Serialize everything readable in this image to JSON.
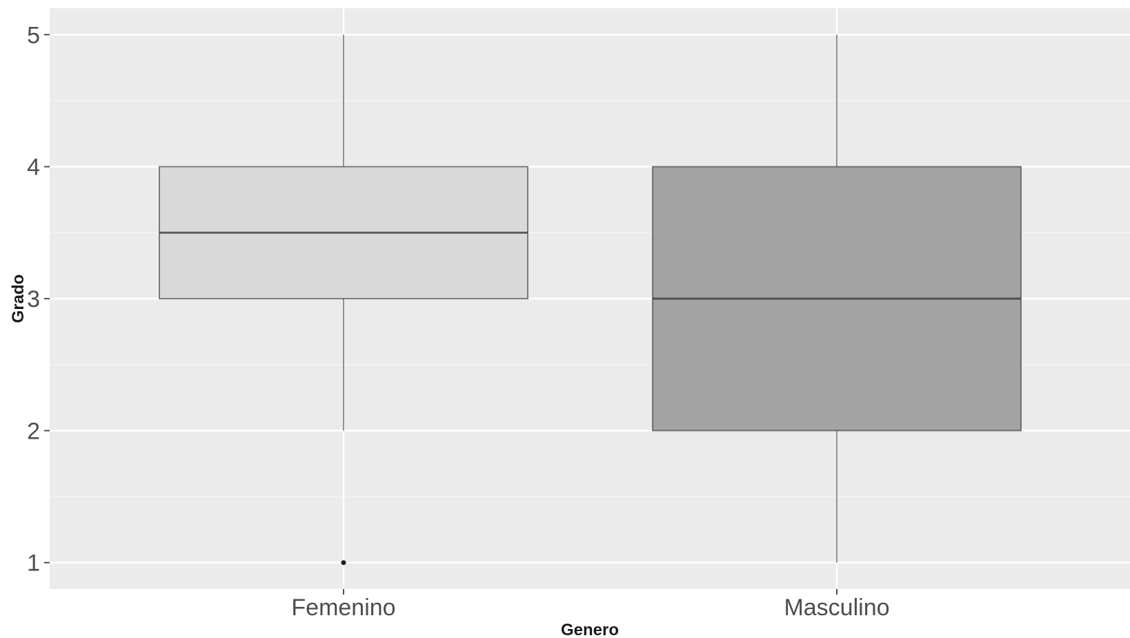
{
  "chart_data": {
    "type": "boxplot",
    "title": "",
    "xlabel": "Genero",
    "ylabel": "Grado",
    "ylim": [
      0.8,
      5.2
    ],
    "yticks": [
      1,
      2,
      3,
      4,
      5
    ],
    "grid": true,
    "legend": "none",
    "categories": [
      "Femenino",
      "Masculino"
    ],
    "boxes": [
      {
        "category": "Femenino",
        "whisker_low": 2,
        "q1": 3,
        "median": 3.5,
        "q3": 4,
        "whisker_high": 5,
        "outliers": [
          1
        ],
        "fill": "#d9d9d9"
      },
      {
        "category": "Masculino",
        "whisker_low": 1,
        "q1": 2,
        "median": 3,
        "q3": 4,
        "whisker_high": 5,
        "outliers": [],
        "fill": "#a3a3a3"
      }
    ],
    "colors": {
      "panel": "#ebebeb",
      "grid_major": "#ffffff",
      "box_line": "#333333",
      "whisker": "#333333"
    }
  }
}
